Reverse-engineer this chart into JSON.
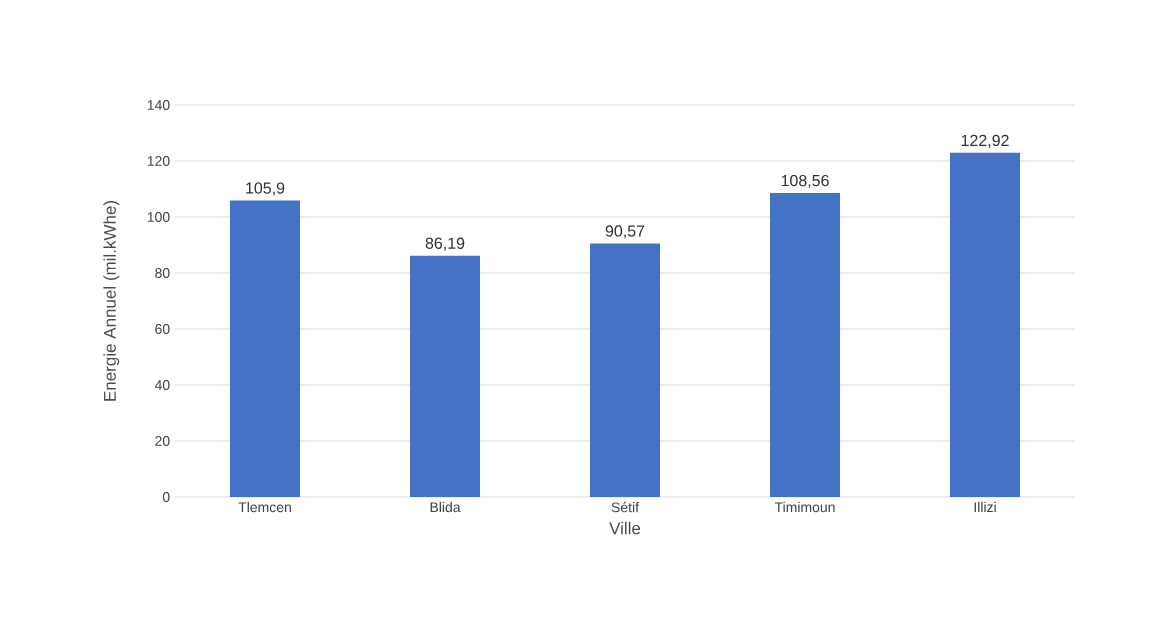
{
  "chart_data": {
    "type": "bar",
    "xlabel": "Ville",
    "ylabel": "Energie Annuel (mil.kWhe)",
    "categories": [
      "Tlemcen",
      "Blida",
      "Sétif",
      "Timimoun",
      "Illizi"
    ],
    "values": [
      105.9,
      86.19,
      90.57,
      108.56,
      122.92
    ],
    "value_labels": [
      "105,9",
      "86,19",
      "90,57",
      "108,56",
      "122,92"
    ],
    "color": "#4472c4",
    "ylim": [
      0,
      140
    ],
    "yticks": [
      0,
      20,
      40,
      60,
      80,
      100,
      120,
      140
    ],
    "grid": "y"
  }
}
